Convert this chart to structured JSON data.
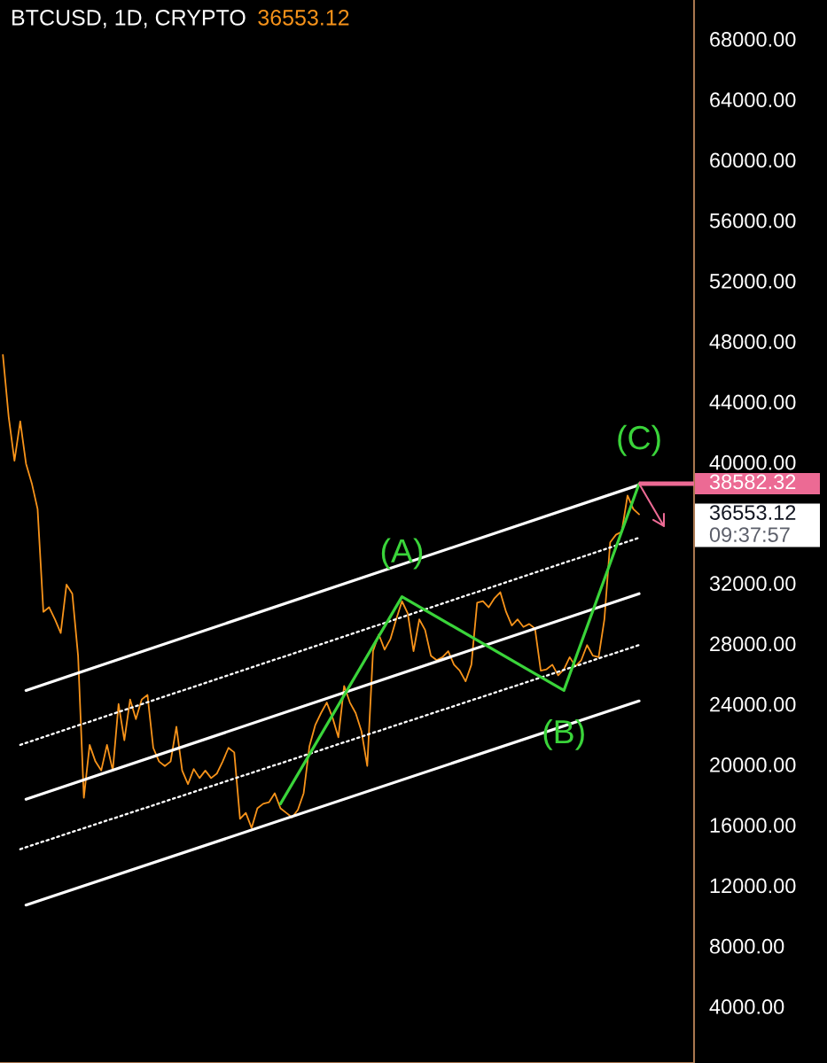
{
  "chart_data": {
    "type": "line",
    "title": "BTCUSD, 1D, CRYPTO",
    "subtitle": "36553.12",
    "categories": [
      null,
      null,
      null,
      null,
      null,
      null,
      null,
      null,
      null,
      null,
      null,
      null,
      null,
      null,
      null,
      null,
      null,
      null,
      null,
      null,
      null,
      null,
      null,
      null,
      null,
      null,
      null,
      null,
      null,
      null,
      null,
      null,
      null,
      null,
      null,
      null,
      null,
      null,
      null,
      null,
      null,
      null,
      null,
      null,
      null,
      null,
      null,
      null,
      null,
      null,
      null,
      null,
      null,
      null,
      null,
      null,
      null,
      null,
      null,
      null,
      null,
      null,
      null,
      null,
      null,
      null,
      null,
      null,
      null,
      null,
      null,
      null,
      null,
      null,
      null,
      null,
      null,
      null,
      null,
      null,
      null,
      null,
      null,
      null,
      null,
      null,
      null,
      null,
      null,
      null,
      null,
      null,
      null,
      null,
      null,
      null,
      null,
      null,
      null,
      null,
      null,
      null,
      null,
      null,
      null,
      null,
      null,
      null,
      null,
      null,
      null
    ],
    "series": [
      {
        "color": "#f7931a",
        "values": [
          47100,
          43000,
          40100,
          42700,
          39900,
          38600,
          36900,
          30100,
          30400,
          29600,
          28700,
          31900,
          31300,
          27200,
          17800,
          21300,
          20200,
          19600,
          21300,
          19600,
          24000,
          21600,
          24300,
          23000,
          24300,
          24600,
          21100,
          20200,
          19900,
          20200,
          22500,
          19600,
          18700,
          19700,
          19100,
          19600,
          19100,
          19400,
          20200,
          21100,
          20800,
          16400,
          16800,
          15800,
          17100,
          17400,
          17500,
          18100,
          17100,
          16800,
          16500,
          17000,
          18100,
          21200,
          22600,
          23400,
          24100,
          23100,
          21800,
          25200,
          24100,
          23400,
          22200,
          19900,
          27500,
          28600,
          27600,
          28300,
          29600,
          30800,
          30000,
          27500,
          29600,
          28900,
          27200,
          26900,
          27100,
          27500,
          26600,
          26200,
          25500,
          26600,
          30700,
          30800,
          30400,
          31000,
          31400,
          30100,
          29200,
          29600,
          29100,
          29300,
          29000,
          26200,
          26300,
          26600,
          25900,
          26300,
          27100,
          26500,
          26900,
          27900,
          27200,
          27100,
          29600,
          34700,
          35200,
          35400,
          37800,
          36900,
          36553.12
        ]
      },
      {
        "color": "#ffffff",
        "line_style": "solid",
        "values": [
          null,
          null,
          null,
          null,
          24900,
          null,
          null,
          null,
          null,
          null,
          null,
          null,
          null,
          null,
          null,
          null,
          null,
          null,
          null,
          null,
          null,
          null,
          null,
          null,
          null,
          null,
          null,
          null,
          null,
          null,
          null,
          null,
          null,
          null,
          null,
          null,
          null,
          null,
          null,
          null,
          null,
          null,
          null,
          null,
          null,
          null,
          null,
          null,
          null,
          null,
          null,
          null,
          null,
          null,
          null,
          null,
          null,
          null,
          null,
          null,
          null,
          null,
          null,
          null,
          null,
          null,
          null,
          null,
          null,
          null,
          null,
          null,
          null,
          null,
          null,
          null,
          null,
          null,
          null,
          null,
          null,
          null,
          null,
          null,
          null,
          null,
          null,
          null,
          null,
          null,
          null,
          null,
          null,
          null,
          null,
          null,
          null,
          null,
          null,
          null,
          null,
          null,
          null,
          null,
          null,
          null,
          null,
          null,
          null,
          null,
          38500
        ]
      },
      {
        "color": "#ffffff",
        "line_style": "dotted",
        "values": [
          null,
          null,
          null,
          21300,
          null,
          null,
          null,
          null,
          null,
          null,
          null,
          null,
          null,
          null,
          null,
          null,
          null,
          null,
          null,
          null,
          null,
          null,
          null,
          null,
          null,
          null,
          null,
          null,
          null,
          null,
          null,
          null,
          null,
          null,
          null,
          null,
          null,
          null,
          null,
          null,
          null,
          null,
          null,
          null,
          null,
          null,
          null,
          null,
          null,
          null,
          null,
          null,
          null,
          null,
          null,
          null,
          null,
          null,
          null,
          null,
          null,
          null,
          null,
          null,
          null,
          null,
          null,
          null,
          null,
          null,
          null,
          null,
          null,
          null,
          null,
          null,
          null,
          null,
          null,
          null,
          null,
          null,
          null,
          null,
          null,
          null,
          null,
          null,
          null,
          null,
          null,
          null,
          null,
          null,
          null,
          null,
          null,
          null,
          null,
          null,
          null,
          null,
          null,
          null,
          null,
          null,
          null,
          null,
          null,
          null,
          35000
        ]
      },
      {
        "color": "#ffffff",
        "line_style": "solid",
        "values": [
          null,
          null,
          null,
          null,
          17700,
          null,
          null,
          null,
          null,
          null,
          null,
          null,
          null,
          null,
          null,
          null,
          null,
          null,
          null,
          null,
          null,
          null,
          null,
          null,
          null,
          null,
          null,
          null,
          null,
          null,
          null,
          null,
          null,
          null,
          null,
          null,
          null,
          null,
          null,
          null,
          null,
          null,
          null,
          null,
          null,
          null,
          null,
          null,
          null,
          null,
          null,
          null,
          null,
          null,
          null,
          null,
          null,
          null,
          null,
          null,
          null,
          null,
          null,
          null,
          null,
          null,
          null,
          null,
          null,
          null,
          null,
          null,
          null,
          null,
          null,
          null,
          null,
          null,
          null,
          null,
          null,
          null,
          null,
          null,
          null,
          null,
          null,
          null,
          null,
          null,
          null,
          null,
          null,
          null,
          null,
          null,
          null,
          null,
          null,
          null,
          null,
          null,
          null,
          null,
          null,
          null,
          null,
          null,
          null,
          null,
          31300
        ]
      },
      {
        "color": "#ffffff",
        "line_style": "dotted",
        "values": [
          null,
          null,
          null,
          14400,
          null,
          null,
          null,
          null,
          null,
          null,
          null,
          null,
          null,
          null,
          null,
          null,
          null,
          null,
          null,
          null,
          null,
          null,
          null,
          null,
          null,
          null,
          null,
          null,
          null,
          null,
          null,
          null,
          null,
          null,
          null,
          null,
          null,
          null,
          null,
          null,
          null,
          null,
          null,
          null,
          null,
          null,
          null,
          null,
          null,
          null,
          null,
          null,
          null,
          null,
          null,
          null,
          null,
          null,
          null,
          null,
          null,
          null,
          null,
          null,
          null,
          null,
          null,
          null,
          null,
          null,
          null,
          null,
          null,
          null,
          null,
          null,
          null,
          null,
          null,
          null,
          null,
          null,
          null,
          null,
          null,
          null,
          null,
          null,
          null,
          null,
          null,
          null,
          null,
          null,
          null,
          null,
          null,
          null,
          null,
          null,
          null,
          null,
          null,
          null,
          null,
          null,
          null,
          null,
          null,
          null,
          27900
        ]
      },
      {
        "color": "#ffffff",
        "line_style": "solid",
        "values": [
          null,
          null,
          null,
          null,
          10700,
          null,
          null,
          null,
          null,
          null,
          null,
          null,
          null,
          null,
          null,
          null,
          null,
          null,
          null,
          null,
          null,
          null,
          null,
          null,
          null,
          null,
          null,
          null,
          null,
          null,
          null,
          null,
          null,
          null,
          null,
          null,
          null,
          null,
          null,
          null,
          null,
          null,
          null,
          null,
          null,
          null,
          null,
          null,
          null,
          null,
          null,
          null,
          null,
          null,
          null,
          null,
          null,
          null,
          null,
          null,
          null,
          null,
          null,
          null,
          null,
          null,
          null,
          null,
          null,
          null,
          null,
          null,
          null,
          null,
          null,
          null,
          null,
          null,
          null,
          null,
          null,
          null,
          null,
          null,
          null,
          null,
          null,
          null,
          null,
          null,
          null,
          null,
          null,
          null,
          null,
          null,
          null,
          null,
          null,
          null,
          null,
          null,
          null,
          null,
          null,
          null,
          null,
          null,
          null,
          null,
          24200
        ]
      },
      {
        "color": "#3ad43a",
        "values": [
          null,
          null,
          null,
          null,
          null,
          null,
          null,
          null,
          null,
          null,
          null,
          null,
          null,
          null,
          null,
          null,
          null,
          null,
          null,
          null,
          null,
          null,
          null,
          null,
          null,
          null,
          null,
          null,
          null,
          null,
          null,
          null,
          null,
          null,
          null,
          null,
          null,
          null,
          null,
          null,
          null,
          null,
          null,
          null,
          null,
          null,
          null,
          null,
          17400,
          null,
          null,
          null,
          null,
          null,
          null,
          null,
          null,
          null,
          null,
          null,
          null,
          null,
          null,
          null,
          null,
          null,
          null,
          null,
          null,
          31100,
          null,
          null,
          null,
          null,
          null,
          null,
          null,
          null,
          null,
          null,
          null,
          null,
          null,
          null,
          null,
          null,
          null,
          null,
          null,
          null,
          null,
          null,
          null,
          null,
          null,
          null,
          null,
          24900,
          null,
          null,
          null,
          null,
          null,
          null,
          null,
          null,
          null,
          null,
          null,
          null,
          38582.32
        ]
      }
    ],
    "ylim": [
      250,
      70580
    ],
    "yticks": [
      {
        "value": 4000,
        "label": "4000.00"
      },
      {
        "value": 8000,
        "label": "8000.00"
      },
      {
        "value": 12000,
        "label": "12000.00"
      },
      {
        "value": 16000,
        "label": "16000.00"
      },
      {
        "value": 20000,
        "label": "20000.00"
      },
      {
        "value": 24000,
        "label": "24000.00"
      },
      {
        "value": 28000,
        "label": "28000.00"
      },
      {
        "value": 32000,
        "label": "32000.00"
      },
      {
        "value": 40000,
        "label": "40000.00"
      },
      {
        "value": 44000,
        "label": "44000.00"
      },
      {
        "value": 48000,
        "label": "48000.00"
      },
      {
        "value": 52000,
        "label": "52000.00"
      },
      {
        "value": 56000,
        "label": "56000.00"
      },
      {
        "value": 60000,
        "label": "60000.00"
      },
      {
        "value": 64000,
        "label": "64000.00"
      },
      {
        "value": 68000,
        "label": "68000.00"
      }
    ],
    "tick_labels": "y",
    "ref_lines": [
      {
        "axis": "y",
        "value": 38582.32,
        "label": "38582.32",
        "color": "#ec6a94"
      }
    ],
    "annotations": [
      {
        "text": "(A)",
        "y": 31100
      },
      {
        "text": "(B)",
        "y": 24900
      },
      {
        "text": "(C)",
        "y": 38582.32
      },
      "36553.12",
      "09:37:57"
    ]
  }
}
